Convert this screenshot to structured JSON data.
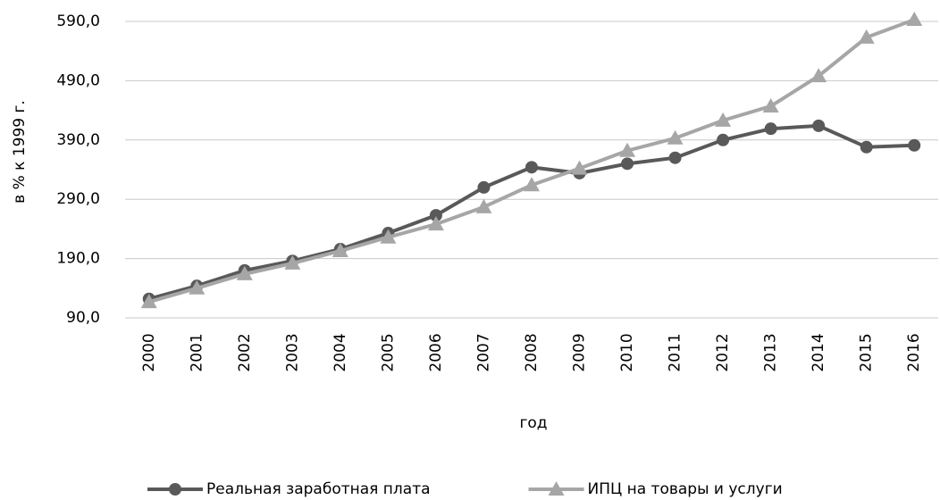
{
  "chart_data": {
    "type": "line",
    "x_label": "год",
    "y_label": "в % к 1999 г.",
    "categories": [
      "2000",
      "2001",
      "2002",
      "2003",
      "2004",
      "2005",
      "2006",
      "2007",
      "2008",
      "2009",
      "2010",
      "2011",
      "2012",
      "2013",
      "2014",
      "2015",
      "2016"
    ],
    "series": [
      {
        "name": "Реальная заработная плата",
        "color": "#595959",
        "marker": "circle",
        "values": [
          122,
          144,
          170,
          186,
          206,
          233,
          263,
          310,
          344,
          334,
          350,
          360,
          390,
          409,
          414,
          378,
          381
        ]
      },
      {
        "name": "ИПЦ на товары и услуги",
        "color": "#a6a6a6",
        "marker": "triangle",
        "values": [
          117,
          140,
          164,
          182,
          203,
          226,
          248,
          277,
          314,
          342,
          372,
          393,
          423,
          447,
          498,
          563,
          593
        ]
      }
    ],
    "ylim": [
      90,
      590
    ],
    "yticks": [
      {
        "value": 90,
        "label": "90,0"
      },
      {
        "value": 190,
        "label": "190,0"
      },
      {
        "value": 290,
        "label": "290,0"
      },
      {
        "value": 390,
        "label": "390,0"
      },
      {
        "value": 490,
        "label": "490,0"
      },
      {
        "value": 590,
        "label": "590,0"
      }
    ],
    "grid": true,
    "legend": "bottom"
  }
}
